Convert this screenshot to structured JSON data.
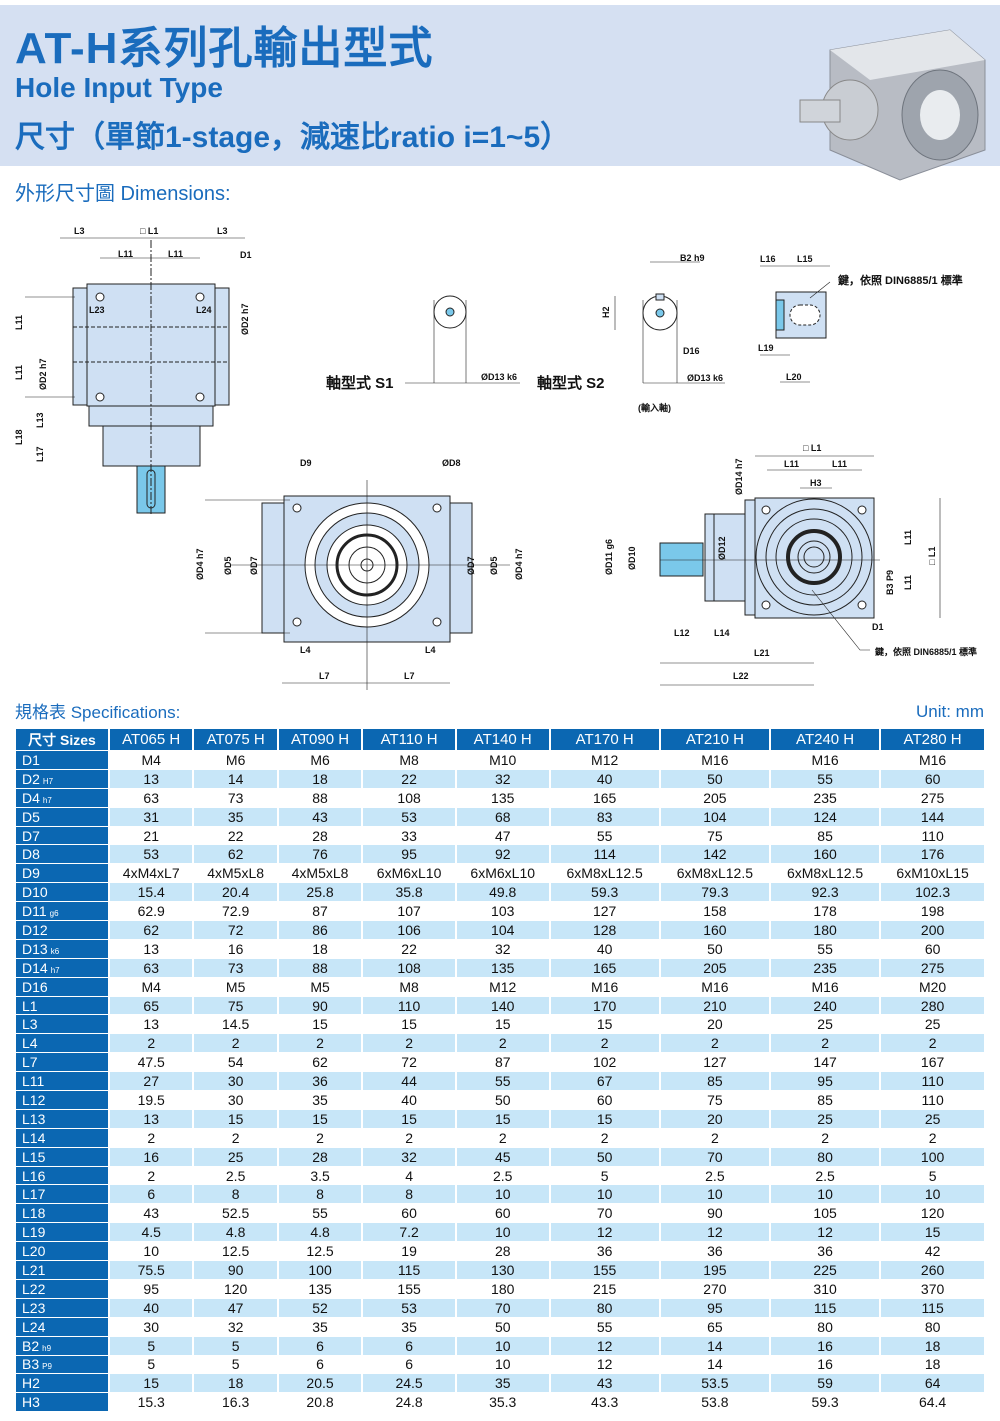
{
  "header": {
    "title": "AT-H系列孔輸出型式",
    "subtitle": "Hole Input Type",
    "sizes_line": "尺寸（單節1-stage，減速比ratio i=1~5）"
  },
  "dimensions_heading": "外形尺寸圖 Dimensions:",
  "drawings": {
    "front": [
      "L3",
      "□ L1",
      "L3",
      "L11",
      "L11",
      "D1",
      "L23",
      "L24",
      "ØD2 h7",
      "L11",
      "L11",
      "ØD2 h7",
      "L13",
      "L18",
      "L17"
    ],
    "s1": {
      "label": "軸型式 S1",
      "d13": "ØD13 k6"
    },
    "s2": {
      "label": "軸型式 S2",
      "b2": "B2 h9",
      "h2": "H2",
      "d16": "D16",
      "d13": "ØD13 k6",
      "note": "(輸入軸)"
    },
    "key": {
      "l16": "L16",
      "l15": "L15",
      "note": "鍵，依照 DIN6885/1 標準",
      "l19": "L19",
      "l20": "L20"
    },
    "flange": [
      "D9",
      "ØD8",
      "ØD4 h7",
      "ØD5",
      "ØD7",
      "ØD7",
      "ØD5",
      "ØD4 h7",
      "L4",
      "L4",
      "L7",
      "L7"
    ],
    "side": [
      "□ L1",
      "L11",
      "L11",
      "H3",
      "ØD14 h7",
      "ØD11 g6",
      "ØD10",
      "ØD12",
      "L11",
      "L11",
      "□ L1",
      "B3 P9",
      "D1",
      "L12",
      "L14",
      "L21",
      "L22",
      "鍵，依照 DIN6885/1 標準"
    ]
  },
  "specs_heading": "規格表 Specifications:",
  "unit": "Unit: mm",
  "colors": {
    "accent": "#1a6cbd",
    "header_cell": "#0b67b2",
    "row_alt": "#c7e6f8",
    "header_band": "#d5e0f2"
  },
  "table": {
    "corner": "尺寸 Sizes",
    "models": [
      "AT065 H",
      "AT075 H",
      "AT090 H",
      "AT110 H",
      "AT140 H",
      "AT170 H",
      "AT210 H",
      "AT240 H",
      "AT280 H"
    ],
    "rows": [
      {
        "name": "D1",
        "tol": "",
        "values": [
          "M4",
          "M6",
          "M6",
          "M8",
          "M10",
          "M12",
          "M16",
          "M16",
          "M16"
        ]
      },
      {
        "name": "D2",
        "tol": "H7",
        "values": [
          "13",
          "14",
          "18",
          "22",
          "32",
          "40",
          "50",
          "55",
          "60"
        ]
      },
      {
        "name": "D4",
        "tol": "h7",
        "values": [
          "63",
          "73",
          "88",
          "108",
          "135",
          "165",
          "205",
          "235",
          "275"
        ]
      },
      {
        "name": "D5",
        "tol": "",
        "values": [
          "31",
          "35",
          "43",
          "53",
          "68",
          "83",
          "104",
          "124",
          "144"
        ]
      },
      {
        "name": "D7",
        "tol": "",
        "values": [
          "21",
          "22",
          "28",
          "33",
          "47",
          "55",
          "75",
          "85",
          "110"
        ]
      },
      {
        "name": "D8",
        "tol": "",
        "values": [
          "53",
          "62",
          "76",
          "95",
          "92",
          "114",
          "142",
          "160",
          "176"
        ]
      },
      {
        "name": "D9",
        "tol": "",
        "values": [
          "4xM4xL7",
          "4xM5xL8",
          "4xM5xL8",
          "6xM6xL10",
          "6xM6xL10",
          "6xM8xL12.5",
          "6xM8xL12.5",
          "6xM8xL12.5",
          "6xM10xL15"
        ]
      },
      {
        "name": "D10",
        "tol": "",
        "values": [
          "15.4",
          "20.4",
          "25.8",
          "35.8",
          "49.8",
          "59.3",
          "79.3",
          "92.3",
          "102.3"
        ]
      },
      {
        "name": "D11",
        "tol": "g6",
        "values": [
          "62.9",
          "72.9",
          "87",
          "107",
          "103",
          "127",
          "158",
          "178",
          "198"
        ]
      },
      {
        "name": "D12",
        "tol": "",
        "values": [
          "62",
          "72",
          "86",
          "106",
          "104",
          "128",
          "160",
          "180",
          "200"
        ]
      },
      {
        "name": "D13",
        "tol": "k6",
        "values": [
          "13",
          "16",
          "18",
          "22",
          "32",
          "40",
          "50",
          "55",
          "60"
        ]
      },
      {
        "name": "D14",
        "tol": "h7",
        "values": [
          "63",
          "73",
          "88",
          "108",
          "135",
          "165",
          "205",
          "235",
          "275"
        ]
      },
      {
        "name": "D16",
        "tol": "",
        "values": [
          "M4",
          "M5",
          "M5",
          "M8",
          "M12",
          "M16",
          "M16",
          "M16",
          "M20"
        ]
      },
      {
        "name": "L1",
        "tol": "",
        "values": [
          "65",
          "75",
          "90",
          "110",
          "140",
          "170",
          "210",
          "240",
          "280"
        ]
      },
      {
        "name": "L3",
        "tol": "",
        "values": [
          "13",
          "14.5",
          "15",
          "15",
          "15",
          "15",
          "20",
          "25",
          "25"
        ]
      },
      {
        "name": "L4",
        "tol": "",
        "values": [
          "2",
          "2",
          "2",
          "2",
          "2",
          "2",
          "2",
          "2",
          "2"
        ]
      },
      {
        "name": "L7",
        "tol": "",
        "values": [
          "47.5",
          "54",
          "62",
          "72",
          "87",
          "102",
          "127",
          "147",
          "167"
        ]
      },
      {
        "name": "L11",
        "tol": "",
        "values": [
          "27",
          "30",
          "36",
          "44",
          "55",
          "67",
          "85",
          "95",
          "110"
        ]
      },
      {
        "name": "L12",
        "tol": "",
        "values": [
          "19.5",
          "30",
          "35",
          "40",
          "50",
          "60",
          "75",
          "85",
          "110"
        ]
      },
      {
        "name": "L13",
        "tol": "",
        "values": [
          "13",
          "15",
          "15",
          "15",
          "15",
          "15",
          "20",
          "25",
          "25"
        ]
      },
      {
        "name": "L14",
        "tol": "",
        "values": [
          "2",
          "2",
          "2",
          "2",
          "2",
          "2",
          "2",
          "2",
          "2"
        ]
      },
      {
        "name": "L15",
        "tol": "",
        "values": [
          "16",
          "25",
          "28",
          "32",
          "45",
          "50",
          "70",
          "80",
          "100"
        ]
      },
      {
        "name": "L16",
        "tol": "",
        "values": [
          "2",
          "2.5",
          "3.5",
          "4",
          "2.5",
          "5",
          "2.5",
          "2.5",
          "5"
        ]
      },
      {
        "name": "L17",
        "tol": "",
        "values": [
          "6",
          "8",
          "8",
          "8",
          "10",
          "10",
          "10",
          "10",
          "10"
        ]
      },
      {
        "name": "L18",
        "tol": "",
        "values": [
          "43",
          "52.5",
          "55",
          "60",
          "60",
          "70",
          "90",
          "105",
          "120"
        ]
      },
      {
        "name": "L19",
        "tol": "",
        "values": [
          "4.5",
          "4.8",
          "4.8",
          "7.2",
          "10",
          "12",
          "12",
          "12",
          "15"
        ]
      },
      {
        "name": "L20",
        "tol": "",
        "values": [
          "10",
          "12.5",
          "12.5",
          "19",
          "28",
          "36",
          "36",
          "36",
          "42"
        ]
      },
      {
        "name": "L21",
        "tol": "",
        "values": [
          "75.5",
          "90",
          "100",
          "115",
          "130",
          "155",
          "195",
          "225",
          "260"
        ]
      },
      {
        "name": "L22",
        "tol": "",
        "values": [
          "95",
          "120",
          "135",
          "155",
          "180",
          "215",
          "270",
          "310",
          "370"
        ]
      },
      {
        "name": "L23",
        "tol": "",
        "values": [
          "40",
          "47",
          "52",
          "53",
          "70",
          "80",
          "95",
          "115",
          "115"
        ]
      },
      {
        "name": "L24",
        "tol": "",
        "values": [
          "30",
          "32",
          "35",
          "35",
          "50",
          "55",
          "65",
          "80",
          "80"
        ]
      },
      {
        "name": "B2",
        "tol": "h9",
        "values": [
          "5",
          "5",
          "6",
          "6",
          "10",
          "12",
          "14",
          "16",
          "18"
        ]
      },
      {
        "name": "B3",
        "tol": "P9",
        "values": [
          "5",
          "5",
          "6",
          "6",
          "10",
          "12",
          "14",
          "16",
          "18"
        ]
      },
      {
        "name": "H2",
        "tol": "",
        "values": [
          "15",
          "18",
          "20.5",
          "24.5",
          "35",
          "43",
          "53.5",
          "59",
          "64"
        ]
      },
      {
        "name": "H3",
        "tol": "",
        "values": [
          "15.3",
          "16.3",
          "20.8",
          "24.8",
          "35.3",
          "43.3",
          "53.8",
          "59.3",
          "64.4"
        ]
      }
    ]
  }
}
